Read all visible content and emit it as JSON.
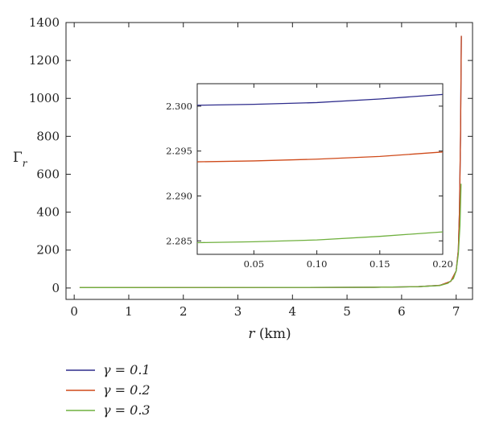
{
  "chart_data": [
    {
      "type": "line",
      "xlabel_var": "r",
      "xlabel_unit": " (km)",
      "ylabel_main": "Γ",
      "ylabel_sub": "r",
      "xlim": [
        -0.15,
        7.3
      ],
      "ylim": [
        -60,
        1400
      ],
      "xticks": [
        0,
        1,
        2,
        3,
        4,
        5,
        6,
        7
      ],
      "yticks": [
        0,
        200,
        400,
        600,
        800,
        1000,
        1200,
        1400
      ],
      "legend_position": "bottom-left",
      "series": [
        {
          "name": "γ = 0.1",
          "color": "#2e2c8c",
          "points": [
            [
              0.1,
              2.3
            ],
            [
              2.0,
              2.6
            ],
            [
              4.0,
              3.0
            ],
            [
              5.5,
              4.0
            ],
            [
              6.3,
              7.0
            ],
            [
              6.7,
              14.0
            ],
            [
              6.9,
              35.0
            ],
            [
              7.0,
              90.0
            ],
            [
              7.04,
              200.0
            ],
            [
              7.06,
              400.0
            ],
            [
              7.08,
              800.0
            ],
            [
              7.095,
              1330.0
            ]
          ]
        },
        {
          "name": "γ = 0.2",
          "color": "#cf4a1a",
          "points": [
            [
              0.1,
              2.294
            ],
            [
              2.0,
              2.6
            ],
            [
              4.0,
              3.0
            ],
            [
              5.5,
              4.0
            ],
            [
              6.3,
              7.0
            ],
            [
              6.7,
              14.0
            ],
            [
              6.9,
              35.0
            ],
            [
              7.0,
              90.0
            ],
            [
              7.04,
              200.0
            ],
            [
              7.06,
              400.0
            ],
            [
              7.08,
              800.0
            ],
            [
              7.095,
              1330.0
            ]
          ]
        },
        {
          "name": "γ = 0.3",
          "color": "#6fb03e",
          "points": [
            [
              0.1,
              2.285
            ],
            [
              2.0,
              2.6
            ],
            [
              4.0,
              3.0
            ],
            [
              5.5,
              4.0
            ],
            [
              6.3,
              7.0
            ],
            [
              6.7,
              13.0
            ],
            [
              6.85,
              25.0
            ],
            [
              6.95,
              50.0
            ],
            [
              7.0,
              90.0
            ],
            [
              7.04,
              180.0
            ],
            [
              7.07,
              330.0
            ],
            [
              7.09,
              550.0
            ]
          ]
        }
      ]
    },
    {
      "type": "line",
      "inset": true,
      "xlim": [
        0.005,
        0.2
      ],
      "ylim": [
        2.2835,
        2.3025
      ],
      "xticks": [
        0.05,
        0.1,
        0.15,
        0.2
      ],
      "xtick_labels": [
        "0.05",
        "0.10",
        "0.15",
        "0.20"
      ],
      "yticks": [
        2.285,
        2.29,
        2.295,
        2.3
      ],
      "ytick_labels": [
        "2.285",
        "2.290",
        "2.295",
        "2.300"
      ],
      "series": [
        {
          "name": "γ = 0.1",
          "color": "#2e2c8c",
          "points": [
            [
              0.005,
              2.3001
            ],
            [
              0.05,
              2.3002
            ],
            [
              0.1,
              2.3004
            ],
            [
              0.15,
              2.3008
            ],
            [
              0.2,
              2.3013
            ]
          ]
        },
        {
          "name": "γ = 0.2",
          "color": "#cf4a1a",
          "points": [
            [
              0.005,
              2.2938
            ],
            [
              0.05,
              2.2939
            ],
            [
              0.1,
              2.2941
            ],
            [
              0.15,
              2.2944
            ],
            [
              0.2,
              2.2949
            ]
          ]
        },
        {
          "name": "γ = 0.3",
          "color": "#6fb03e",
          "points": [
            [
              0.005,
              2.2848
            ],
            [
              0.05,
              2.2849
            ],
            [
              0.1,
              2.2851
            ],
            [
              0.15,
              2.2855
            ],
            [
              0.2,
              2.286
            ]
          ]
        }
      ]
    }
  ]
}
